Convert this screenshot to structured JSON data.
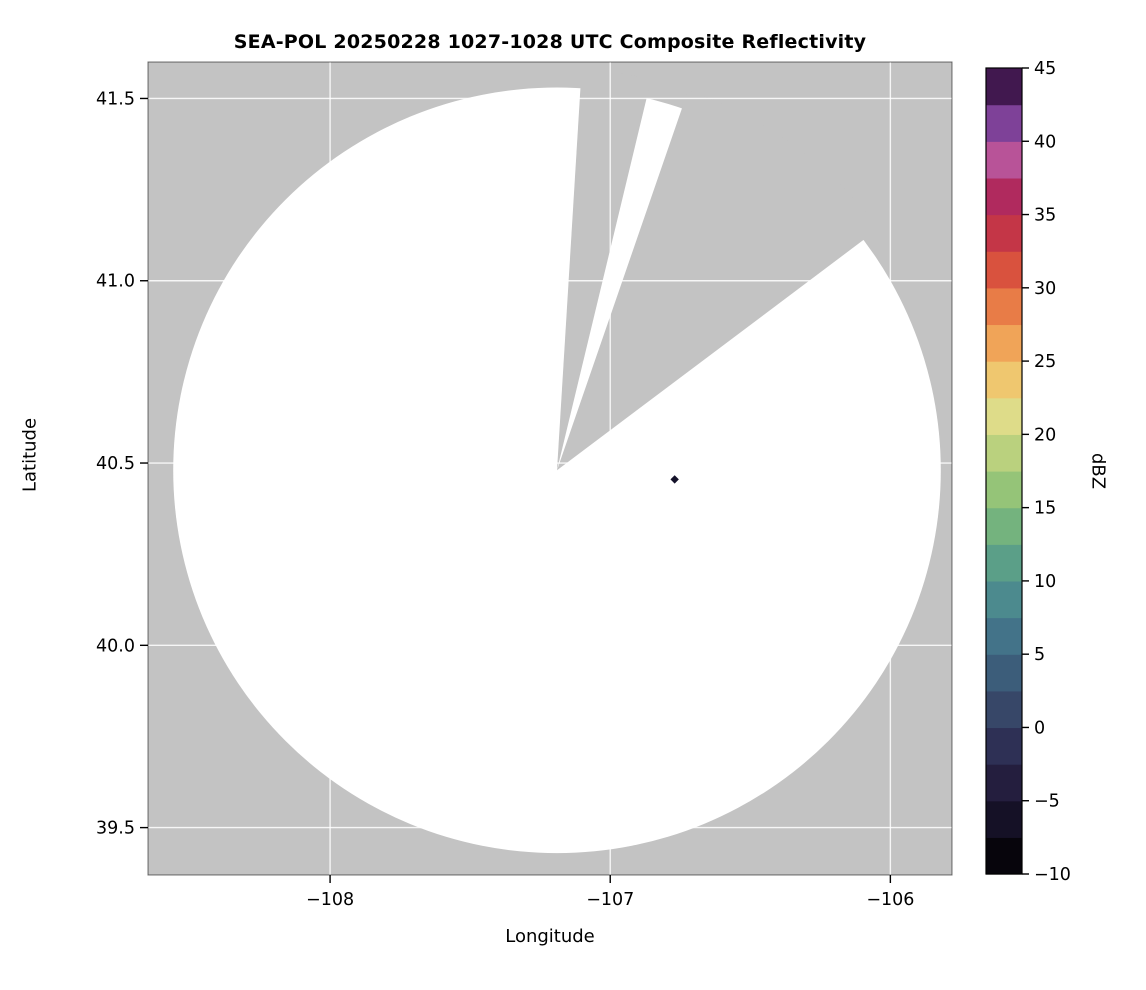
{
  "title": "SEA-POL 20250228 1027-1028 UTC Composite Reflectivity",
  "chart_data": {
    "type": "heatmap",
    "subtype": "radar-composite-reflectivity-ppi",
    "title": "SEA-POL 20250228 1027-1028 UTC Composite Reflectivity",
    "xlabel": "Longitude",
    "ylabel": "Latitude",
    "xlim": [
      -108.65,
      -105.78
    ],
    "ylim": [
      39.37,
      41.6
    ],
    "xticks": [
      -108,
      -107,
      -106
    ],
    "xtick_labels": [
      "−108",
      "−107",
      "−106"
    ],
    "yticks": [
      39.5,
      40.0,
      40.5,
      41.0,
      41.5
    ],
    "ytick_labels": [
      "39.5",
      "40.0",
      "40.5",
      "41.0",
      "41.5"
    ],
    "grid": true,
    "grid_color": "rgba(255,255,255,0.85)",
    "nodata_color": "#c3c3c3",
    "coverage_color": "#ffffff",
    "radar": {
      "center_lon": -107.19,
      "center_lat": 40.48,
      "radius_lon_deg": 1.37,
      "radius_lat_deg": 1.05,
      "blocked_sector_azimuths_deg": [
        [
          3.5,
          13.5
        ],
        [
          19,
          53
        ]
      ]
    },
    "echoes": [
      {
        "lon": -106.77,
        "lat": 40.455,
        "approx_dbz": -6,
        "color": "#14122a"
      }
    ],
    "colorbar": {
      "label": "dBZ",
      "min": -10,
      "max": 45,
      "level_step": 2.5,
      "ticks": [
        -10,
        -5,
        0,
        5,
        10,
        15,
        20,
        25,
        30,
        35,
        40,
        45
      ],
      "tick_labels": [
        "−10",
        "−5",
        "0",
        "5",
        "10",
        "15",
        "20",
        "25",
        "30",
        "35",
        "40",
        "45"
      ],
      "colors_bottom_to_top": [
        "#07050c",
        "#151126",
        "#241e3e",
        "#2e3055",
        "#374768",
        "#3c5d7a",
        "#437389",
        "#4c8a8e",
        "#5b9f88",
        "#74b37e",
        "#95c478",
        "#bad17e",
        "#dedc89",
        "#efc76f",
        "#f0a458",
        "#e87c47",
        "#d9523e",
        "#c43647",
        "#b02a5e",
        "#b85398",
        "#7e4198",
        "#41184f"
      ]
    }
  }
}
